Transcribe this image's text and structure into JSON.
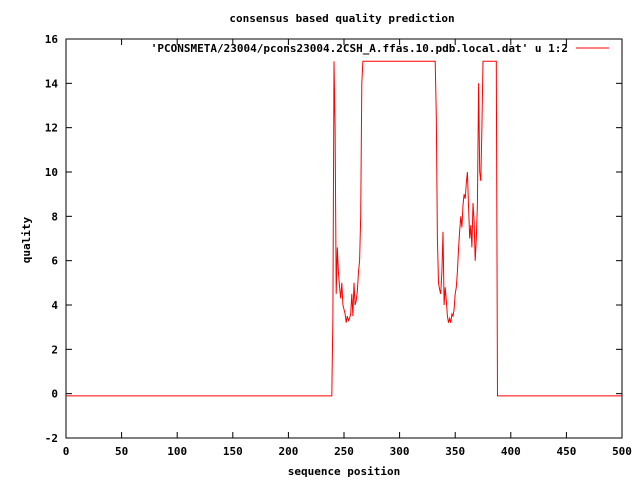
{
  "chart_data": {
    "type": "line",
    "title": "consensus based quality prediction",
    "xlabel": "sequence position",
    "ylabel": "quality",
    "xlim": [
      0,
      500
    ],
    "ylim": [
      -2,
      16
    ],
    "xticks": [
      0,
      50,
      100,
      150,
      200,
      250,
      300,
      350,
      400,
      450,
      500
    ],
    "yticks": [
      -2,
      0,
      2,
      4,
      6,
      8,
      10,
      12,
      14,
      16
    ],
    "grid": false,
    "legend_position": "top-right",
    "series": [
      {
        "name": "'PCONSMETA/23004/pcons23004.2CSH_A.ffas.10.pdb.local.dat' u 1:2",
        "color": "#ff0000",
        "x": [
          0,
          239,
          240,
          241,
          242,
          243,
          244,
          245,
          246,
          247,
          248,
          249,
          250,
          251,
          252,
          253,
          254,
          255,
          256,
          257,
          258,
          259,
          260,
          261,
          262,
          263,
          264,
          265,
          266,
          267,
          268,
          269,
          270,
          271,
          300,
          332,
          333,
          334,
          335,
          336,
          337,
          338,
          339,
          340,
          341,
          342,
          343,
          344,
          345,
          346,
          347,
          348,
          349,
          350,
          351,
          352,
          353,
          354,
          355,
          356,
          357,
          358,
          359,
          360,
          361,
          362,
          363,
          364,
          365,
          366,
          367,
          368,
          369,
          370,
          371,
          372,
          373,
          374,
          375,
          376,
          377,
          378,
          379,
          380,
          381,
          382,
          383,
          384,
          385,
          386,
          387,
          388,
          389,
          390,
          400,
          450,
          500
        ],
        "y": [
          -0.1,
          -0.1,
          3.5,
          15,
          12,
          4.5,
          6.6,
          5.5,
          4.8,
          4.3,
          5.0,
          4.0,
          3.8,
          3.6,
          3.2,
          3.5,
          3.3,
          3.4,
          3.6,
          4.5,
          3.5,
          5.0,
          4.0,
          4.2,
          4.6,
          5.5,
          6.0,
          8.0,
          14.0,
          15,
          15,
          15,
          15,
          15,
          15,
          15,
          12.5,
          7.0,
          5.0,
          4.7,
          4.5,
          5.5,
          7.3,
          4.0,
          4.8,
          4.2,
          3.5,
          3.2,
          3.4,
          3.2,
          3.6,
          3.5,
          3.8,
          4.5,
          4.8,
          5.5,
          6.5,
          7.3,
          8.0,
          7.5,
          8.5,
          9.0,
          8.8,
          9.5,
          10.0,
          8.5,
          7.0,
          7.6,
          6.6,
          8.6,
          7.8,
          6.0,
          7.0,
          8.5,
          14.0,
          10.0,
          9.6,
          12.0,
          15,
          15,
          15,
          15,
          15,
          15,
          15,
          15,
          15,
          15,
          15,
          15,
          15,
          -0.1,
          -0.1,
          -0.1,
          -0.1,
          -0.1,
          -0.1
        ]
      }
    ]
  }
}
